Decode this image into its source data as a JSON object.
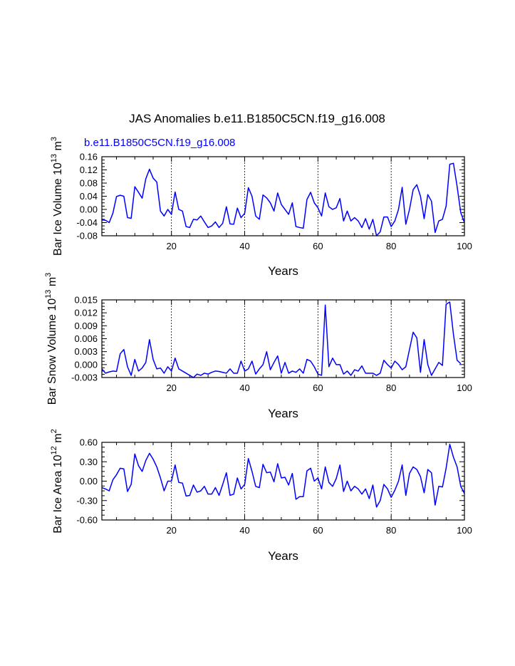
{
  "figure": {
    "title": "JAS Anomalies b.e11.B1850C5CN.f19_g16.008",
    "subtitle": "b.e11.B1850C5CN.f19_g16.008",
    "line_color": "#0000ff",
    "ref_line_color": "#000000"
  },
  "chart_data": [
    {
      "type": "line",
      "title": "b.e11.B1850C5CN.f19_g16.008",
      "xlabel": "Years",
      "ylabel": "Bar Ice Volume 10",
      "ylabel_exp": "13",
      "ylabel_unit": " m",
      "ylabel_unit_exp": "3",
      "xlim": [
        1,
        100
      ],
      "ylim": [
        -0.08,
        0.16
      ],
      "yticks": [
        -0.08,
        -0.04,
        0.0,
        0.04,
        0.08,
        0.12,
        0.16
      ],
      "ytick_labels": [
        "-0.08",
        "-0.04",
        "0.00",
        "0.04",
        "0.08",
        "0.12",
        "0.16"
      ],
      "xticks": [
        20,
        40,
        60,
        80,
        100
      ],
      "xtick_labels": [
        "20",
        "40",
        "60",
        "80",
        "100"
      ],
      "vlines": [
        20,
        40,
        60,
        80
      ],
      "series": [
        {
          "name": "Bar Ice Volume",
          "x_start": 1,
          "values": [
            -0.032,
            -0.033,
            -0.04,
            -0.012,
            0.039,
            0.043,
            0.04,
            -0.025,
            -0.027,
            0.069,
            0.052,
            0.034,
            0.093,
            0.122,
            0.095,
            0.083,
            -0.005,
            -0.02,
            0.0,
            -0.015,
            0.053,
            0.0,
            -0.005,
            -0.052,
            -0.055,
            -0.03,
            -0.032,
            -0.02,
            -0.038,
            -0.055,
            -0.05,
            -0.038,
            -0.055,
            -0.042,
            0.008,
            -0.044,
            -0.045,
            0.004,
            -0.025,
            -0.012,
            0.066,
            0.04,
            -0.02,
            -0.03,
            0.044,
            0.035,
            0.02,
            -0.005,
            0.05,
            0.015,
            0.0,
            -0.015,
            0.02,
            -0.052,
            -0.055,
            -0.057,
            0.03,
            0.052,
            0.02,
            0.005,
            -0.02,
            0.05,
            0.008,
            0.0,
            0.005,
            0.033,
            -0.035,
            -0.005,
            -0.035,
            -0.025,
            -0.035,
            -0.055,
            -0.028,
            -0.06,
            -0.03,
            -0.08,
            -0.068,
            -0.023,
            -0.023,
            -0.052,
            -0.035,
            0.0,
            0.067,
            -0.045,
            0.0,
            0.06,
            0.075,
            0.04,
            -0.028,
            0.045,
            0.025,
            -0.07,
            -0.035,
            -0.03,
            0.01,
            0.137,
            0.14,
            0.07,
            -0.01,
            -0.04
          ]
        }
      ]
    },
    {
      "type": "line",
      "xlabel": "Years",
      "ylabel": "Bar Snow Volume 10",
      "ylabel_exp": "13",
      "ylabel_unit": " m",
      "ylabel_unit_exp": "3",
      "xlim": [
        1,
        100
      ],
      "ylim": [
        -0.003,
        0.015
      ],
      "yticks": [
        -0.003,
        0.0,
        0.003,
        0.006,
        0.009,
        0.012,
        0.015
      ],
      "ytick_labels": [
        "-0.003",
        "0.000",
        "0.003",
        "0.006",
        "0.009",
        "0.012",
        "0.015"
      ],
      "xticks": [
        20,
        40,
        60,
        80,
        100
      ],
      "xtick_labels": [
        "20",
        "40",
        "60",
        "80",
        "100"
      ],
      "vlines": [
        20,
        40,
        60,
        80
      ],
      "series": [
        {
          "name": "Bar Snow Volume",
          "x_start": 1,
          "values": [
            -0.001,
            -0.002,
            -0.0017,
            -0.0015,
            -0.0016,
            0.0025,
            0.0035,
            -0.0005,
            -0.0025,
            0.0012,
            -0.0015,
            -0.0008,
            0.0005,
            0.0058,
            0.0012,
            -0.001,
            -0.0008,
            -0.002,
            -0.0005,
            -0.0015,
            0.0015,
            -0.001,
            -0.0015,
            -0.002,
            -0.0025,
            -0.003,
            -0.0022,
            -0.0025,
            -0.002,
            -0.0022,
            -0.0018,
            -0.0015,
            -0.0016,
            -0.0018,
            -0.002,
            -0.001,
            -0.002,
            -0.002,
            0.0008,
            -0.0015,
            -0.001,
            0.0008,
            -0.0022,
            -0.001,
            0.0,
            0.003,
            -0.0012,
            0.0005,
            0.002,
            -0.002,
            0.0005,
            -0.002,
            -0.0015,
            -0.0018,
            -0.001,
            -0.002,
            0.0012,
            0.0008,
            -0.0005,
            -0.0022,
            -0.0025,
            0.0138,
            -0.0005,
            0.0015,
            0.0,
            0.0,
            -0.0022,
            -0.0015,
            -0.0025,
            -0.0012,
            -0.0015,
            -0.0003,
            -0.002,
            -0.002,
            -0.002,
            -0.0025,
            -0.002,
            0.001,
            0.0,
            -0.0008,
            0.0008,
            0.0,
            -0.0012,
            -0.0005,
            0.0035,
            0.0075,
            0.0062,
            -0.0018,
            0.0058,
            0.0,
            -0.0025,
            -0.001,
            0.0005,
            -0.0002,
            0.014,
            0.0145,
            0.007,
            0.001,
            0.0002
          ]
        }
      ]
    },
    {
      "type": "line",
      "xlabel": "Years",
      "ylabel": "Bar Ice Area 10",
      "ylabel_exp": "12",
      "ylabel_unit": " m",
      "ylabel_unit_exp": "2",
      "xlim": [
        1,
        100
      ],
      "ylim": [
        -0.6,
        0.6
      ],
      "yticks": [
        -0.6,
        -0.3,
        0.0,
        0.3,
        0.6
      ],
      "ytick_labels": [
        "-0.60",
        "-0.30",
        "0.00",
        "0.30",
        "0.60"
      ],
      "xticks": [
        20,
        40,
        60,
        80,
        100
      ],
      "xtick_labels": [
        "20",
        "40",
        "60",
        "80",
        "100"
      ],
      "vlines": [
        20,
        40,
        60,
        80
      ],
      "series": [
        {
          "name": "Bar Ice Area",
          "x_start": 1,
          "values": [
            -0.1,
            -0.12,
            -0.15,
            0.02,
            0.1,
            0.2,
            0.19,
            -0.16,
            -0.05,
            0.42,
            0.24,
            0.15,
            0.32,
            0.43,
            0.34,
            0.22,
            0.05,
            -0.15,
            0.0,
            0.0,
            0.25,
            -0.02,
            -0.03,
            -0.23,
            -0.22,
            -0.06,
            -0.17,
            -0.15,
            -0.08,
            -0.2,
            -0.2,
            -0.1,
            -0.22,
            -0.05,
            0.13,
            -0.22,
            -0.2,
            0.05,
            -0.12,
            -0.05,
            0.35,
            0.15,
            -0.08,
            -0.1,
            0.26,
            0.13,
            0.14,
            -0.01,
            0.27,
            0.05,
            0.06,
            -0.06,
            0.12,
            -0.28,
            -0.24,
            -0.24,
            0.16,
            0.2,
            0.0,
            0.05,
            -0.12,
            0.22,
            -0.02,
            -0.08,
            0.04,
            0.25,
            -0.16,
            0.0,
            -0.15,
            -0.08,
            -0.12,
            -0.2,
            -0.12,
            -0.27,
            -0.06,
            -0.4,
            -0.3,
            -0.05,
            -0.12,
            -0.25,
            -0.14,
            0.0,
            0.25,
            -0.22,
            0.12,
            0.22,
            0.18,
            0.07,
            -0.18,
            0.18,
            0.13,
            -0.37,
            -0.08,
            -0.09,
            0.2,
            0.57,
            0.37,
            0.22,
            -0.08,
            -0.19
          ]
        }
      ]
    }
  ]
}
